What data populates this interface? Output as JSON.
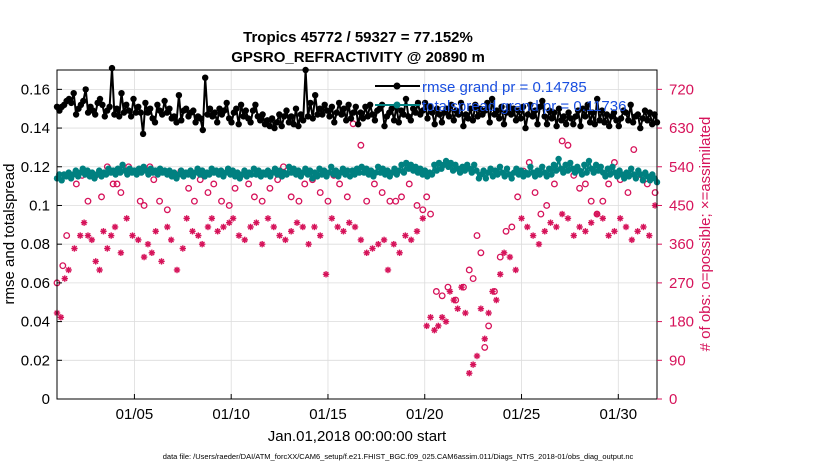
{
  "chart_data": {
    "type": "line",
    "title_line1": "Tropics 45772 / 59327 = 77.152%",
    "title_line2": "GPSRO_REFRACTIVITY @ 20890 m",
    "xlabel": "Jan.01,2018 00:00:00 start",
    "ylabel": "rmse and totalspread",
    "ylabel_right": "# of obs: o=possible; ×=assimilated",
    "xlim": [
      1,
      32
    ],
    "ylim": [
      0,
      0.17
    ],
    "ylim_right": [
      0,
      765
    ],
    "x_ticks": [
      5,
      10,
      15,
      20,
      25,
      30
    ],
    "x_tick_labels": [
      "01/05",
      "01/10",
      "01/15",
      "01/20",
      "01/25",
      "01/30"
    ],
    "y_ticks": [
      0,
      0.02,
      0.04,
      0.06,
      0.08,
      0.1,
      0.12,
      0.14,
      0.16
    ],
    "y_tick_labels": [
      "0",
      "0.02",
      "0.04",
      "0.06",
      "0.08",
      "0.1",
      "0.12",
      "0.14",
      "0.16"
    ],
    "y_right_ticks": [
      0,
      90,
      180,
      270,
      360,
      450,
      540,
      630,
      720
    ],
    "y_right_tick_labels": [
      "0",
      "90",
      "180",
      "270",
      "360",
      "450",
      "540",
      "630",
      "720"
    ],
    "legend_location": "top-right",
    "grid": true,
    "colors": {
      "rmse": "#000000",
      "spread": "#008080",
      "obs": "#d6135a"
    },
    "rmse_x_range": [
      1.0,
      32.0
    ],
    "series": [
      {
        "name": "rmse grand pr = 0.14785",
        "marker": "filled-circle",
        "values": [
          0.151,
          0.149,
          0.151,
          0.152,
          0.154,
          0.155,
          0.153,
          0.158,
          0.147,
          0.15,
          0.152,
          0.154,
          0.16,
          0.148,
          0.151,
          0.149,
          0.147,
          0.153,
          0.155,
          0.152,
          0.146,
          0.149,
          0.151,
          0.171,
          0.147,
          0.15,
          0.146,
          0.158,
          0.148,
          0.152,
          0.149,
          0.146,
          0.155,
          0.148,
          0.151,
          0.148,
          0.137,
          0.153,
          0.148,
          0.15,
          0.145,
          0.143,
          0.152,
          0.149,
          0.147,
          0.154,
          0.148,
          0.15,
          0.145,
          0.146,
          0.143,
          0.157,
          0.144,
          0.149,
          0.15,
          0.146,
          0.148,
          0.149,
          0.143,
          0.146,
          0.145,
          0.139,
          0.166,
          0.147,
          0.15,
          0.146,
          0.148,
          0.143,
          0.15,
          0.147,
          0.149,
          0.153,
          0.145,
          0.143,
          0.148,
          0.15,
          0.142,
          0.152,
          0.146,
          0.149,
          0.145,
          0.143,
          0.149,
          0.152,
          0.146,
          0.144,
          0.147,
          0.142,
          0.144,
          0.141,
          0.145,
          0.14,
          0.143,
          0.147,
          0.141,
          0.146,
          0.149,
          0.143,
          0.146,
          0.142,
          0.15,
          0.141,
          0.147,
          0.144,
          0.17,
          0.146,
          0.153,
          0.145,
          0.157,
          0.147,
          0.15,
          0.147,
          0.152,
          0.149,
          0.146,
          0.151,
          0.143,
          0.148,
          0.153,
          0.147,
          0.15,
          0.144,
          0.152,
          0.145,
          0.148,
          0.151,
          0.142,
          0.148,
          0.145,
          0.151,
          0.146,
          0.152,
          0.147,
          0.144,
          0.149,
          0.15,
          0.152,
          0.141,
          0.146,
          0.148,
          0.15,
          0.144,
          0.151,
          0.143,
          0.149,
          0.147,
          0.155,
          0.146,
          0.144,
          0.15,
          0.148,
          0.153,
          0.147,
          0.149,
          0.153,
          0.145,
          0.151,
          0.148,
          0.142,
          0.15,
          0.147,
          0.143,
          0.148,
          0.15,
          0.146,
          0.152,
          0.144,
          0.149,
          0.147,
          0.153,
          0.141,
          0.147,
          0.145,
          0.15,
          0.144,
          0.152,
          0.146,
          0.15,
          0.147,
          0.149,
          0.153,
          0.143,
          0.155,
          0.147,
          0.149,
          0.145,
          0.151,
          0.142,
          0.148,
          0.151,
          0.147,
          0.15,
          0.144,
          0.149,
          0.145,
          0.151,
          0.14,
          0.147,
          0.152,
          0.146,
          0.149,
          0.142,
          0.151,
          0.154,
          0.146,
          0.142,
          0.149,
          0.145,
          0.148,
          0.141,
          0.15,
          0.144,
          0.146,
          0.142,
          0.148,
          0.145,
          0.142,
          0.146,
          0.149,
          0.141,
          0.15,
          0.146,
          0.152,
          0.143,
          0.148,
          0.142,
          0.155,
          0.144,
          0.149,
          0.143,
          0.147,
          0.141,
          0.146,
          0.148,
          0.144,
          0.141,
          0.145,
          0.149,
          0.148,
          0.144,
          0.152,
          0.143,
          0.146,
          0.147,
          0.14,
          0.145,
          0.149,
          0.144,
          0.148,
          0.142,
          0.147,
          0.143
        ]
      },
      {
        "name": "totalspread grand pr = 0.11736",
        "marker": "filled-circle",
        "values": [
          0.114,
          0.116,
          0.113,
          0.116,
          0.115,
          0.117,
          0.114,
          0.116,
          0.118,
          0.115,
          0.117,
          0.119,
          0.116,
          0.118,
          0.115,
          0.117,
          0.114,
          0.116,
          0.118,
          0.115,
          0.117,
          0.116,
          0.119,
          0.117,
          0.118,
          0.116,
          0.119,
          0.117,
          0.121,
          0.118,
          0.116,
          0.119,
          0.117,
          0.118,
          0.116,
          0.119,
          0.117,
          0.12,
          0.118,
          0.116,
          0.119,
          0.117,
          0.118,
          0.116,
          0.119,
          0.117,
          0.118,
          0.116,
          0.118,
          0.115,
          0.117,
          0.114,
          0.116,
          0.118,
          0.115,
          0.117,
          0.116,
          0.118,
          0.115,
          0.117,
          0.119,
          0.116,
          0.118,
          0.115,
          0.117,
          0.116,
          0.119,
          0.117,
          0.118,
          0.116,
          0.118,
          0.115,
          0.117,
          0.119,
          0.116,
          0.118,
          0.115,
          0.117,
          0.114,
          0.116,
          0.118,
          0.115,
          0.117,
          0.116,
          0.119,
          0.116,
          0.118,
          0.115,
          0.117,
          0.116,
          0.118,
          0.115,
          0.117,
          0.119,
          0.116,
          0.118,
          0.115,
          0.117,
          0.116,
          0.12,
          0.117,
          0.119,
          0.116,
          0.118,
          0.115,
          0.117,
          0.119,
          0.116,
          0.118,
          0.114,
          0.117,
          0.115,
          0.119,
          0.116,
          0.118,
          0.115,
          0.117,
          0.12,
          0.116,
          0.118,
          0.115,
          0.117,
          0.119,
          0.116,
          0.118,
          0.115,
          0.118,
          0.116,
          0.119,
          0.117,
          0.12,
          0.117,
          0.119,
          0.116,
          0.118,
          0.115,
          0.117,
          0.12,
          0.117,
          0.119,
          0.116,
          0.118,
          0.115,
          0.117,
          0.119,
          0.116,
          0.118,
          0.121,
          0.117,
          0.122,
          0.119,
          0.121,
          0.118,
          0.12,
          0.117,
          0.119,
          0.116,
          0.118,
          0.115,
          0.117,
          0.116,
          0.121,
          0.118,
          0.122,
          0.119,
          0.121,
          0.123,
          0.12,
          0.122,
          0.118,
          0.121,
          0.119,
          0.117,
          0.12,
          0.118,
          0.121,
          0.119,
          0.117,
          0.121,
          0.118,
          0.114,
          0.116,
          0.118,
          0.114,
          0.117,
          0.119,
          0.115,
          0.118,
          0.116,
          0.12,
          0.117,
          0.115,
          0.119,
          0.116,
          0.114,
          0.117,
          0.119,
          0.116,
          0.118,
          0.115,
          0.117,
          0.116,
          0.12,
          0.117,
          0.115,
          0.118,
          0.116,
          0.12,
          0.117,
          0.115,
          0.119,
          0.116,
          0.121,
          0.118,
          0.124,
          0.119,
          0.117,
          0.121,
          0.118,
          0.122,
          0.119,
          0.117,
          0.12,
          0.118,
          0.116,
          0.121,
          0.117,
          0.123,
          0.119,
          0.117,
          0.121,
          0.118,
          0.12,
          0.117,
          0.115,
          0.119,
          0.116,
          0.12,
          0.117,
          0.115,
          0.118,
          0.116,
          0.114,
          0.117,
          0.115,
          0.119,
          0.116,
          0.114,
          0.118,
          0.116,
          0.113,
          0.117,
          0.115,
          0.113,
          0.116,
          0.114,
          0.112
        ]
      }
    ],
    "obs_possible": {
      "name": "possible",
      "marker": "open-circle",
      "x": [
        1.0,
        1.3,
        1.5,
        2.0,
        2.3,
        2.6,
        3.0,
        3.3,
        3.6,
        3.9,
        4.1,
        4.3,
        4.7,
        5.0,
        5.3,
        5.5,
        5.8,
        6.0,
        6.3,
        6.7,
        7.0,
        7.4,
        7.8,
        8.1,
        8.4,
        8.8,
        9.1,
        9.5,
        9.9,
        10.2,
        10.5,
        10.9,
        11.2,
        11.6,
        12.0,
        12.4,
        12.7,
        13.1,
        13.5,
        13.8,
        14.2,
        14.6,
        15.0,
        15.3,
        15.6,
        16.0,
        16.3,
        16.7,
        17.0,
        17.4,
        17.8,
        18.2,
        18.5,
        18.8,
        19.2,
        19.6,
        19.9,
        20.1,
        20.3,
        20.6,
        20.9,
        21.2,
        21.6,
        22.0,
        22.3,
        22.5,
        22.7,
        22.9,
        23.1,
        23.3,
        23.6,
        23.9,
        24.2,
        24.5,
        24.8,
        25.1,
        25.4,
        25.7,
        26.0,
        26.3,
        26.7,
        27.1,
        27.4,
        27.7,
        28.0,
        28.3,
        28.6,
        28.9,
        29.2,
        29.5,
        29.8,
        30.1,
        30.5,
        30.8,
        31.2,
        31.5,
        31.9
      ],
      "y": [
        270,
        310,
        380,
        500,
        520,
        460,
        520,
        470,
        540,
        500,
        500,
        480,
        540,
        530,
        460,
        450,
        540,
        510,
        460,
        440,
        520,
        530,
        490,
        460,
        510,
        480,
        500,
        460,
        450,
        490,
        520,
        500,
        470,
        460,
        490,
        510,
        540,
        470,
        460,
        500,
        510,
        480,
        460,
        520,
        500,
        470,
        640,
        590,
        460,
        500,
        480,
        460,
        460,
        470,
        500,
        450,
        440,
        470,
        430,
        250,
        240,
        260,
        230,
        260,
        300,
        280,
        380,
        340,
        120,
        170,
        250,
        330,
        390,
        400,
        470,
        530,
        550,
        480,
        430,
        450,
        500,
        600,
        590,
        520,
        490,
        500,
        460,
        430,
        460,
        500,
        550,
        510,
        480,
        580,
        520,
        500,
        480
      ]
    },
    "obs_assimilated": {
      "name": "assimilated",
      "marker": "asterisk",
      "x": [
        1.0,
        1.2,
        1.4,
        1.6,
        1.9,
        2.2,
        2.4,
        2.6,
        2.8,
        3.0,
        3.2,
        3.4,
        3.6,
        3.8,
        4.0,
        4.3,
        4.6,
        4.9,
        5.2,
        5.5,
        5.7,
        5.9,
        6.1,
        6.4,
        6.7,
        6.9,
        7.2,
        7.5,
        7.7,
        8.0,
        8.3,
        8.5,
        8.8,
        9.0,
        9.3,
        9.6,
        9.9,
        10.1,
        10.4,
        10.7,
        11.0,
        11.3,
        11.6,
        11.9,
        12.2,
        12.5,
        12.8,
        13.1,
        13.4,
        13.7,
        14.0,
        14.3,
        14.6,
        14.9,
        15.2,
        15.5,
        15.8,
        16.1,
        16.4,
        16.7,
        17.0,
        17.3,
        17.6,
        17.9,
        18.1,
        18.4,
        18.7,
        19.0,
        19.3,
        19.6,
        19.9,
        20.1,
        20.3,
        20.5,
        20.7,
        20.9,
        21.1,
        21.3,
        21.5,
        21.7,
        21.9,
        22.1,
        22.3,
        22.5,
        22.7,
        22.9,
        23.1,
        23.3,
        23.5,
        23.7,
        23.9,
        24.1,
        24.4,
        24.7,
        25.0,
        25.3,
        25.6,
        25.9,
        26.2,
        26.5,
        26.8,
        27.1,
        27.4,
        27.7,
        28.0,
        28.3,
        28.6,
        28.9,
        29.2,
        29.5,
        29.8,
        30.1,
        30.4,
        30.7,
        31.0,
        31.3,
        31.6,
        31.9
      ],
      "y": [
        200,
        190,
        280,
        300,
        350,
        380,
        410,
        380,
        370,
        320,
        300,
        390,
        350,
        380,
        400,
        340,
        420,
        380,
        370,
        330,
        360,
        340,
        390,
        320,
        400,
        370,
        300,
        350,
        420,
        390,
        380,
        360,
        400,
        420,
        390,
        400,
        410,
        420,
        380,
        370,
        400,
        410,
        360,
        420,
        400,
        380,
        370,
        390,
        410,
        400,
        360,
        400,
        380,
        290,
        420,
        400,
        390,
        410,
        400,
        370,
        340,
        350,
        360,
        370,
        300,
        360,
        340,
        380,
        370,
        390,
        420,
        170,
        190,
        160,
        170,
        190,
        180,
        250,
        230,
        210,
        260,
        200,
        60,
        80,
        100,
        210,
        140,
        200,
        250,
        230,
        290,
        340,
        330,
        300,
        420,
        400,
        380,
        360,
        390,
        410,
        400,
        430,
        420,
        380,
        400,
        390,
        410,
        430,
        420,
        380,
        390,
        420,
        400,
        370,
        390,
        400,
        380,
        450
      ]
    },
    "footer": "data file: /Users/raeder/DAI/ATM_forcXX/CAM6_setup/f.e21.FHIST_BGC.f09_025.CAM6assim.011/Diags_NTrS_2018-01/obs_diag_output.nc"
  }
}
